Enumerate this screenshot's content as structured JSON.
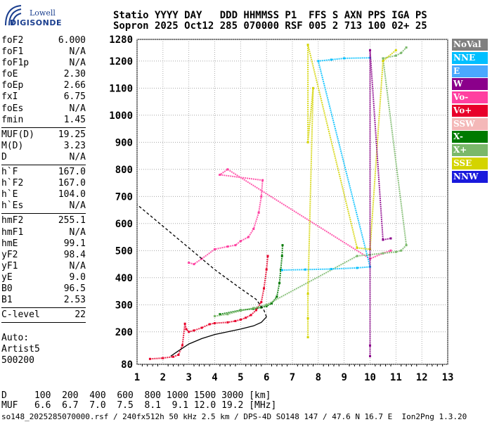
{
  "logo": {
    "line1": "Lowell",
    "line2": "DIGISONDE"
  },
  "header": {
    "line1": "Statio YYYY DAY   DDD HHMMSS P1  FFS S AXN PPS IGA PS",
    "line2": "Sopron 2025 Oct12 285 070000 RSF 005 2 713 100 02+ 25"
  },
  "params": [
    {
      "name": "foF2",
      "value": "6.000"
    },
    {
      "name": "foF1",
      "value": "N/A"
    },
    {
      "name": "foF1p",
      "value": "N/A"
    },
    {
      "name": "foE",
      "value": "2.30"
    },
    {
      "name": "foEp",
      "value": "2.66"
    },
    {
      "name": "fxI",
      "value": "6.75"
    },
    {
      "name": "foEs",
      "value": "N/A"
    },
    {
      "name": "fmin",
      "value": "1.45"
    },
    {
      "sep": true
    },
    {
      "name": "MUF(D)",
      "value": "19.25"
    },
    {
      "name": "M(D)",
      "value": "3.23"
    },
    {
      "name": "D",
      "value": "N/A"
    },
    {
      "sep": true
    },
    {
      "name": "h`F",
      "value": "167.0"
    },
    {
      "name": "h`F2",
      "value": "167.0"
    },
    {
      "name": "h`E",
      "value": "104.0"
    },
    {
      "name": "h`Es",
      "value": "N/A"
    },
    {
      "sep": true
    },
    {
      "name": "hmF2",
      "value": "255.1"
    },
    {
      "name": "hmF1",
      "value": "N/A"
    },
    {
      "name": "hmE",
      "value": "99.1"
    },
    {
      "name": "yF2",
      "value": "98.4"
    },
    {
      "name": "yF1",
      "value": "N/A"
    },
    {
      "name": "yE",
      "value": "9.0"
    },
    {
      "name": "B0",
      "value": "96.5"
    },
    {
      "name": "B1",
      "value": "2.53"
    },
    {
      "sep": true
    },
    {
      "name": "C-level",
      "value": "22"
    },
    {
      "sep": true
    }
  ],
  "auto": {
    "line1": "Auto:",
    "line2": "Artist5",
    "line3": "500200"
  },
  "dtable": {
    "d_row": "D     100  200  400  600  800 1000 1500 3000 [km]",
    "muf_row": "MUF   6.6  6.7  7.0  7.5  8.1  9.1 12.0 19.2 [MHz]"
  },
  "footer": "so148_2025285070000.rsf / 240fx512h 50 kHz 2.5 km / DPS-4D SO148 147 / 47.6 N 16.7 E  Ion2Png 1.3.20",
  "legend": [
    {
      "label": "NoVal",
      "color": "#808080"
    },
    {
      "label": "NNE",
      "color": "#00bfff"
    },
    {
      "label": "E",
      "color": "#4aa8ff"
    },
    {
      "label": "W",
      "color": "#8b008b"
    },
    {
      "label": "Vo-",
      "color": "#ff3fa0"
    },
    {
      "label": "Vo+",
      "color": "#e8002a"
    },
    {
      "label": "SSW",
      "color": "#f4b8b8"
    },
    {
      "label": "X-",
      "color": "#007a00"
    },
    {
      "label": "X+",
      "color": "#7ab86a"
    },
    {
      "label": "SSE",
      "color": "#d4d400"
    },
    {
      "label": "NNW",
      "color": "#1a1adc"
    }
  ],
  "chart_data": {
    "type": "scatter",
    "xlim": [
      1,
      13
    ],
    "ylim": [
      80,
      1290
    ],
    "x_ticks": [
      1,
      2,
      3,
      4,
      5,
      6,
      7,
      8,
      9,
      10,
      11,
      12,
      13
    ],
    "y_ticks": [
      80,
      200,
      300,
      400,
      500,
      600,
      700,
      800,
      900,
      1000,
      1100,
      1200,
      1280
    ],
    "grid": true,
    "series": [
      {
        "name": "Vo+",
        "color": "#e8002a",
        "points": [
          [
            1.5,
            100
          ],
          [
            2.0,
            103
          ],
          [
            2.4,
            108
          ],
          [
            2.6,
            115
          ],
          [
            2.75,
            150
          ],
          [
            2.85,
            230
          ],
          [
            2.9,
            210
          ],
          [
            3.0,
            200
          ],
          [
            3.2,
            205
          ],
          [
            3.5,
            215
          ],
          [
            3.8,
            228
          ],
          [
            4.0,
            232
          ],
          [
            4.5,
            235
          ],
          [
            4.8,
            240
          ],
          [
            5.0,
            245
          ],
          [
            5.2,
            252
          ],
          [
            5.4,
            262
          ],
          [
            5.6,
            280
          ],
          [
            5.8,
            310
          ],
          [
            5.9,
            360
          ],
          [
            6.0,
            430
          ],
          [
            6.05,
            480
          ]
        ]
      },
      {
        "name": "Vo-",
        "color": "#ff3fa0",
        "points": [
          [
            3.0,
            455
          ],
          [
            3.2,
            450
          ],
          [
            3.5,
            470
          ],
          [
            4.0,
            505
          ],
          [
            4.5,
            515
          ],
          [
            4.8,
            520
          ],
          [
            5.0,
            535
          ],
          [
            5.3,
            550
          ],
          [
            5.5,
            580
          ],
          [
            5.7,
            640
          ],
          [
            5.8,
            700
          ],
          [
            5.85,
            760
          ],
          [
            4.2,
            780
          ],
          [
            4.5,
            800
          ],
          [
            10.0,
            470
          ],
          [
            10.5,
            490
          ],
          [
            10.8,
            500
          ]
        ]
      },
      {
        "name": "X-",
        "color": "#007a00",
        "points": [
          [
            4.2,
            265
          ],
          [
            5.0,
            280
          ],
          [
            5.5,
            285
          ],
          [
            5.8,
            290
          ],
          [
            6.0,
            295
          ],
          [
            6.2,
            305
          ],
          [
            6.4,
            330
          ],
          [
            6.5,
            380
          ],
          [
            6.55,
            430
          ],
          [
            6.6,
            480
          ],
          [
            6.62,
            520
          ]
        ]
      },
      {
        "name": "X+",
        "color": "#7ab86a",
        "points": [
          [
            4.0,
            258
          ],
          [
            4.5,
            265
          ],
          [
            5.0,
            278
          ],
          [
            5.5,
            288
          ],
          [
            6.0,
            300
          ],
          [
            9.5,
            480
          ],
          [
            10.0,
            485
          ],
          [
            10.5,
            490
          ],
          [
            11.0,
            495
          ],
          [
            11.2,
            500
          ],
          [
            11.4,
            520
          ],
          [
            10.5,
            1210
          ],
          [
            11.0,
            1220
          ],
          [
            11.2,
            1230
          ],
          [
            11.4,
            1250
          ]
        ]
      },
      {
        "name": "NNE",
        "color": "#00bfff",
        "points": [
          [
            6.6,
            428
          ],
          [
            7.5,
            430
          ],
          [
            8.5,
            432
          ],
          [
            9.5,
            436
          ],
          [
            10.0,
            440
          ],
          [
            8.0,
            1200
          ],
          [
            8.5,
            1205
          ],
          [
            9.0,
            1210
          ],
          [
            10.0,
            1212
          ]
        ]
      },
      {
        "name": "SSE",
        "color": "#d4d400",
        "points": [
          [
            7.6,
            180
          ],
          [
            7.6,
            250
          ],
          [
            7.6,
            340
          ],
          [
            7.8,
            1100
          ],
          [
            7.6,
            900
          ],
          [
            7.6,
            1260
          ],
          [
            9.5,
            510
          ],
          [
            10.0,
            505
          ],
          [
            10.5,
            1200
          ],
          [
            11.0,
            1240
          ]
        ]
      },
      {
        "name": "W",
        "color": "#8b008b",
        "points": [
          [
            10.0,
            110
          ],
          [
            10.0,
            150
          ],
          [
            10.0,
            1240
          ],
          [
            10.5,
            540
          ],
          [
            10.8,
            545
          ]
        ]
      },
      {
        "name": "N(h) profile",
        "color": "#000000",
        "line": [
          [
            2.3,
            110
          ],
          [
            2.6,
            130
          ],
          [
            3.0,
            155
          ],
          [
            3.5,
            175
          ],
          [
            4.0,
            190
          ],
          [
            4.5,
            200
          ],
          [
            5.0,
            210
          ],
          [
            5.5,
            222
          ],
          [
            5.8,
            235
          ],
          [
            6.0,
            255
          ]
        ]
      },
      {
        "name": "N(h) topside",
        "color": "#000000",
        "line": [
          [
            6.0,
            255
          ],
          [
            5.9,
            280
          ],
          [
            5.6,
            320
          ],
          [
            5.0,
            360
          ],
          [
            4.0,
            430
          ],
          [
            3.0,
            510
          ],
          [
            2.0,
            590
          ],
          [
            1.0,
            670
          ]
        ]
      }
    ]
  }
}
